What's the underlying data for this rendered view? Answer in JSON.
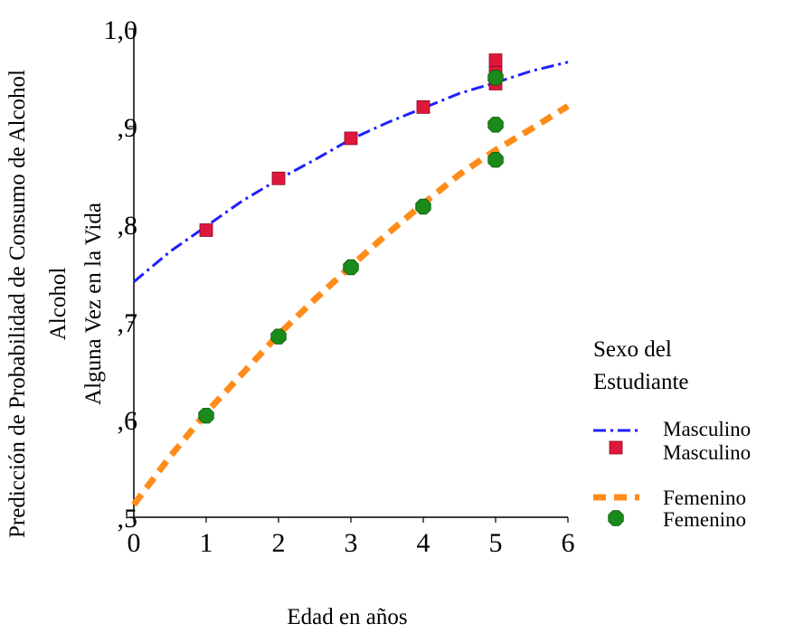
{
  "chart_data": {
    "type": "line",
    "title": "",
    "xlabel": "Edad en años",
    "ylabel_lines": [
      "Predicción de Probabilidad de Consumo de Alcohol",
      "Alcohol",
      "Alguna Vez en la Vida"
    ],
    "xlim": [
      0,
      6
    ],
    "ylim": [
      0.5,
      1.0
    ],
    "x_ticks": [
      "0",
      "1",
      "2",
      "3",
      "4",
      "5",
      "6"
    ],
    "y_ticks": [
      ",5",
      ",6",
      ",7",
      ",8",
      ",9",
      "1,0"
    ],
    "grid": false,
    "legend_title": "Sexo del Estudiante",
    "legend_title_lines": [
      "Sexo del",
      "Estudiante"
    ],
    "legend_position": "right",
    "series": [
      {
        "name": "Masculino",
        "kind": "fit-line",
        "style": "dash-dot",
        "color": "#1f1fff",
        "x": [
          0,
          0.5,
          1,
          1.5,
          2,
          2.5,
          3,
          3.5,
          4,
          4.5,
          5,
          5.5,
          6
        ],
        "y": [
          0.741,
          0.772,
          0.798,
          0.824,
          0.846,
          0.866,
          0.887,
          0.904,
          0.919,
          0.934,
          0.945,
          0.957,
          0.966
        ]
      },
      {
        "name": "Masculino",
        "kind": "points",
        "marker": "square",
        "color": "#e0173c",
        "x": [
          1,
          2,
          3,
          4,
          5,
          5,
          5
        ],
        "y": [
          0.794,
          0.847,
          0.888,
          0.92,
          0.944,
          0.955,
          0.968
        ]
      },
      {
        "name": "Femenino",
        "kind": "fit-line",
        "style": "dashed",
        "color": "#ff8c1a",
        "x": [
          0,
          0.5,
          1,
          1.5,
          2,
          2.5,
          3,
          3.5,
          4,
          4.5,
          5,
          5.5,
          6
        ],
        "y": [
          0.513,
          0.562,
          0.607,
          0.647,
          0.687,
          0.723,
          0.757,
          0.79,
          0.821,
          0.851,
          0.876,
          0.898,
          0.921
        ]
      },
      {
        "name": "Femenino",
        "kind": "points",
        "marker": "octagon",
        "color": "#1a8a1a",
        "x": [
          1,
          2,
          3,
          4,
          5,
          5,
          5
        ],
        "y": [
          0.604,
          0.685,
          0.756,
          0.818,
          0.866,
          0.902,
          0.95
        ]
      }
    ]
  }
}
